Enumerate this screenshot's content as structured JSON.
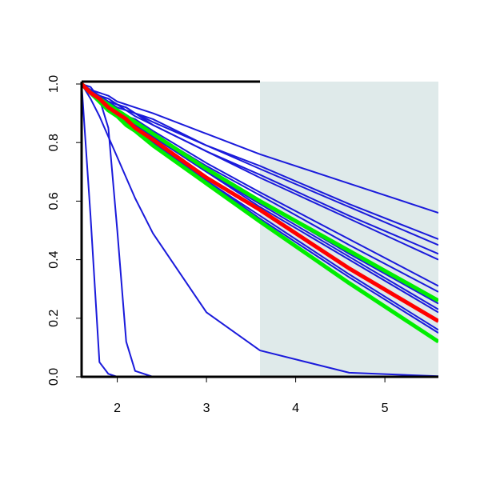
{
  "chart_data": {
    "type": "line",
    "x": [
      1.6,
      1.7,
      1.8,
      1.9,
      2.0,
      2.1,
      2.2,
      2.4,
      3.0,
      3.6,
      4.6,
      5.6
    ],
    "xlim": [
      1.6,
      5.6
    ],
    "xticks": [
      2,
      3,
      4,
      5
    ],
    "ylim": [
      0,
      1
    ],
    "yticks": [
      {
        "value": 0,
        "label": "0.0"
      },
      0.2,
      0.4,
      0.6,
      0.8,
      {
        "value": 1,
        "label": "1.0"
      }
    ],
    "shaded_region": {
      "x": [
        3.6,
        5.6
      ],
      "color": "#dfeaea"
    },
    "series": [
      {
        "color": "#1a1adb",
        "values": [
          1,
          0.55,
          0.05,
          0.01,
          0,
          0,
          0,
          0,
          0,
          0,
          0,
          0
        ]
      },
      {
        "color": "#1a1adb",
        "values": [
          1,
          0.99,
          0.95,
          0.85,
          0.5,
          0.12,
          0.02,
          0,
          0,
          0,
          0,
          0
        ]
      },
      {
        "color": "#1a1adb",
        "values": [
          1,
          0.95,
          0.89,
          0.82,
          0.75,
          0.68,
          0.61,
          0.49,
          0.22,
          0.09,
          0.014,
          0.002
        ]
      },
      {
        "color": "#1a1adb",
        "values": [
          1,
          0.98,
          0.97,
          0.96,
          0.94,
          0.93,
          0.92,
          0.9,
          0.83,
          0.76,
          0.66,
          0.56
        ]
      },
      {
        "color": "#1a1adb",
        "values": [
          1,
          0.98,
          0.96,
          0.95,
          0.93,
          0.92,
          0.9,
          0.88,
          0.79,
          0.72,
          0.59,
          0.47
        ]
      },
      {
        "color": "#1a1adb",
        "values": [
          1,
          0.98,
          0.96,
          0.95,
          0.93,
          0.92,
          0.9,
          0.87,
          0.79,
          0.71,
          0.58,
          0.45
        ]
      },
      {
        "color": "#1a1adb",
        "values": [
          1,
          0.98,
          0.96,
          0.94,
          0.93,
          0.91,
          0.9,
          0.86,
          0.77,
          0.69,
          0.55,
          0.42
        ]
      },
      {
        "color": "#1a1adb",
        "values": [
          1,
          0.98,
          0.96,
          0.94,
          0.92,
          0.91,
          0.89,
          0.86,
          0.77,
          0.68,
          0.54,
          0.4
        ]
      },
      {
        "color": "#1a1adb",
        "values": [
          1,
          0.98,
          0.95,
          0.93,
          0.91,
          0.89,
          0.88,
          0.84,
          0.73,
          0.63,
          0.47,
          0.31
        ]
      },
      {
        "color": "#1a1adb",
        "values": [
          1,
          0.97,
          0.95,
          0.93,
          0.91,
          0.89,
          0.87,
          0.83,
          0.72,
          0.62,
          0.45,
          0.29
        ]
      },
      {
        "color": "#1a1adb",
        "values": [
          1,
          0.97,
          0.95,
          0.93,
          0.91,
          0.88,
          0.86,
          0.82,
          0.71,
          0.6,
          0.42,
          0.25
        ]
      },
      {
        "color": "#1a1adb",
        "values": [
          1,
          0.97,
          0.95,
          0.93,
          0.9,
          0.88,
          0.86,
          0.82,
          0.7,
          0.59,
          0.41,
          0.23
        ]
      },
      {
        "color": "#1a1adb",
        "values": [
          1,
          0.97,
          0.95,
          0.92,
          0.9,
          0.88,
          0.86,
          0.82,
          0.7,
          0.58,
          0.4,
          0.22
        ]
      },
      {
        "color": "#1a1adb",
        "values": [
          1,
          0.97,
          0.94,
          0.92,
          0.89,
          0.87,
          0.85,
          0.8,
          0.67,
          0.55,
          0.35,
          0.16
        ]
      },
      {
        "color": "#1a1adb",
        "values": [
          1,
          0.97,
          0.94,
          0.92,
          0.89,
          0.87,
          0.85,
          0.8,
          0.67,
          0.54,
          0.34,
          0.15
        ]
      },
      {
        "color": "#00ee00",
        "values": [
          1,
          0.97,
          0.95,
          0.93,
          0.91,
          0.89,
          0.87,
          0.83,
          0.71,
          0.6,
          0.43,
          0.26
        ]
      },
      {
        "color": "#00ee00",
        "values": [
          1,
          0.97,
          0.94,
          0.91,
          0.89,
          0.86,
          0.84,
          0.79,
          0.66,
          0.53,
          0.32,
          0.12
        ]
      },
      {
        "color": "#ff0000",
        "values": [
          1,
          0.97,
          0.95,
          0.92,
          0.9,
          0.88,
          0.85,
          0.81,
          0.68,
          0.57,
          0.37,
          0.19
        ]
      }
    ]
  }
}
